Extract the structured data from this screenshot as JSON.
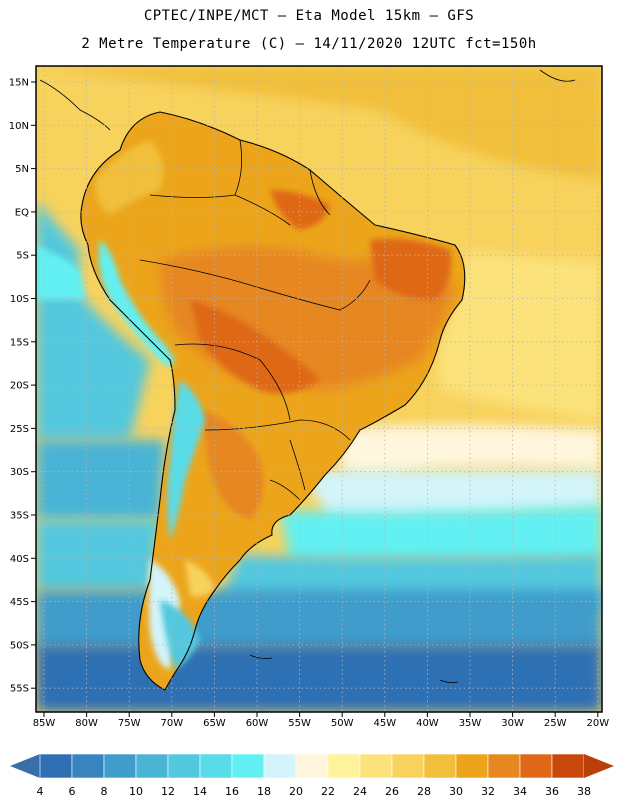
{
  "header": {
    "line1": "CPTEC/INPE/MCT –  Eta Model 15km – GFS",
    "line2": "2 Metre Temperature (C) – 14/11/2020 12UTC fct=150h"
  },
  "map": {
    "lat_labels": [
      "15N",
      "10N",
      "5N",
      "EQ",
      "5S",
      "10S",
      "15S",
      "20S",
      "25S",
      "30S",
      "35S",
      "40S",
      "45S",
      "50S",
      "55S"
    ],
    "lon_labels": [
      "85W",
      "80W",
      "75W",
      "70W",
      "65W",
      "60W",
      "55W",
      "50W",
      "45W",
      "40W",
      "35W",
      "30W",
      "25W",
      "20W"
    ]
  },
  "colorbar": {
    "labels": [
      "4",
      "6",
      "8",
      "10",
      "12",
      "14",
      "16",
      "18",
      "20",
      "22",
      "24",
      "26",
      "28",
      "30",
      "32",
      "34",
      "36",
      "38"
    ],
    "colors": [
      "#2f6fb4",
      "#3784c0",
      "#3f9ccb",
      "#4ab4d5",
      "#52c8de",
      "#5adbe8",
      "#63f0f2",
      "#d2f4fa",
      "#fff6dd",
      "#fef29a",
      "#fbe27a",
      "#f7d25d",
      "#f1bf3b",
      "#eca51b",
      "#e68720",
      "#de6718",
      "#c8470b"
    ],
    "left_end_color": "#3a6ea8",
    "right_end_color": "#b8400a"
  }
}
